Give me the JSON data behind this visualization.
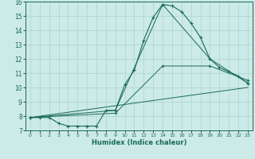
{
  "title": "",
  "xlabel": "Humidex (Indice chaleur)",
  "ylabel": "",
  "bg_color": "#cceae7",
  "grid_color": "#aad4d0",
  "line_color": "#1a6b5a",
  "xlim": [
    -0.5,
    23.5
  ],
  "ylim": [
    7,
    16
  ],
  "xticks": [
    0,
    1,
    2,
    3,
    4,
    5,
    6,
    7,
    8,
    9,
    10,
    11,
    12,
    13,
    14,
    15,
    16,
    17,
    18,
    19,
    20,
    21,
    22,
    23
  ],
  "yticks": [
    7,
    8,
    9,
    10,
    11,
    12,
    13,
    14,
    15,
    16
  ],
  "line1_x": [
    0,
    1,
    2,
    3,
    4,
    5,
    6,
    7,
    8,
    9,
    10,
    11,
    12,
    13,
    14,
    15,
    16,
    17,
    18,
    19,
    20,
    21,
    22,
    23
  ],
  "line1_y": [
    7.9,
    7.9,
    7.9,
    7.5,
    7.3,
    7.3,
    7.3,
    7.3,
    8.4,
    8.4,
    10.2,
    11.2,
    13.3,
    14.9,
    15.8,
    15.7,
    15.3,
    14.5,
    13.5,
    12.0,
    11.4,
    11.1,
    10.8,
    10.3
  ],
  "line2_x": [
    0,
    9,
    14,
    19,
    23
  ],
  "line2_y": [
    7.9,
    8.4,
    15.8,
    12.0,
    10.3
  ],
  "line3_x": [
    0,
    9,
    14,
    19,
    23
  ],
  "line3_y": [
    7.9,
    8.2,
    11.5,
    11.5,
    10.5
  ],
  "line4_x": [
    0,
    23
  ],
  "line4_y": [
    7.9,
    10.0
  ]
}
